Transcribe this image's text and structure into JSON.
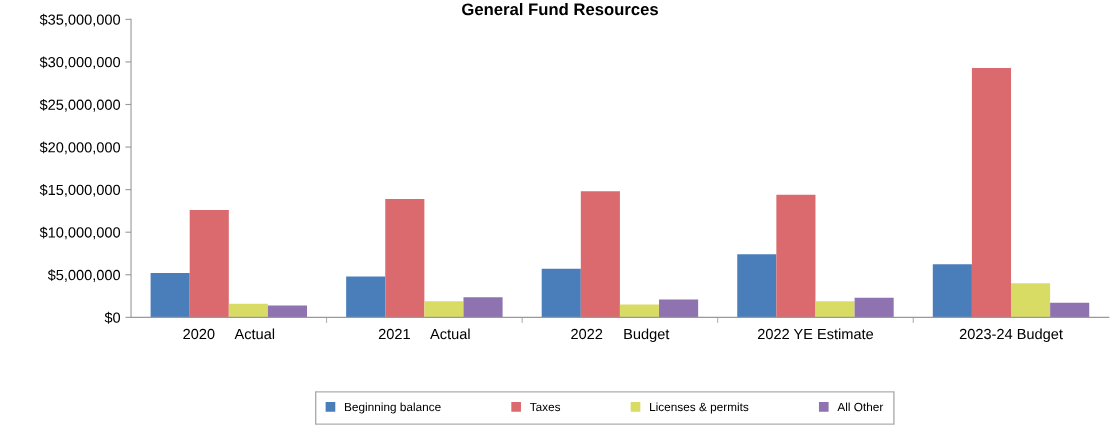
{
  "chart_data": {
    "type": "bar",
    "title": "General Fund Resources",
    "categories": [
      "2020     Actual",
      "2021     Actual",
      "2022     Budget",
      "2022 YE Estimate",
      "2023-24 Budget"
    ],
    "series": [
      {
        "name": "Beginning balance",
        "color": "#4a7ebb",
        "values": [
          5200000,
          4800000,
          5700000,
          7400000,
          6250000
        ]
      },
      {
        "name": "Taxes",
        "color": "#db6a6e",
        "values": [
          12600000,
          13900000,
          14800000,
          14400000,
          29300000
        ]
      },
      {
        "name": "Licenses & permits",
        "color": "#d9dc64",
        "values": [
          1600000,
          1900000,
          1500000,
          1900000,
          4000000
        ]
      },
      {
        "name": "All Other",
        "color": "#8f72b0",
        "values": [
          1400000,
          2350000,
          2100000,
          2300000,
          1700000
        ]
      }
    ],
    "ylim": [
      0,
      35000000
    ],
    "yticks": [
      {
        "value": 0,
        "label": "$0"
      },
      {
        "value": 5000000,
        "label": "$5,000,000"
      },
      {
        "value": 10000000,
        "label": "$10,000,000"
      },
      {
        "value": 15000000,
        "label": "$15,000,000"
      },
      {
        "value": 20000000,
        "label": "$20,000,000"
      },
      {
        "value": 25000000,
        "label": "$25,000,000"
      },
      {
        "value": 30000000,
        "label": "$30,000,000"
      },
      {
        "value": 35000000,
        "label": "$35,000,000"
      }
    ],
    "grid": false,
    "legend": "bottom"
  }
}
